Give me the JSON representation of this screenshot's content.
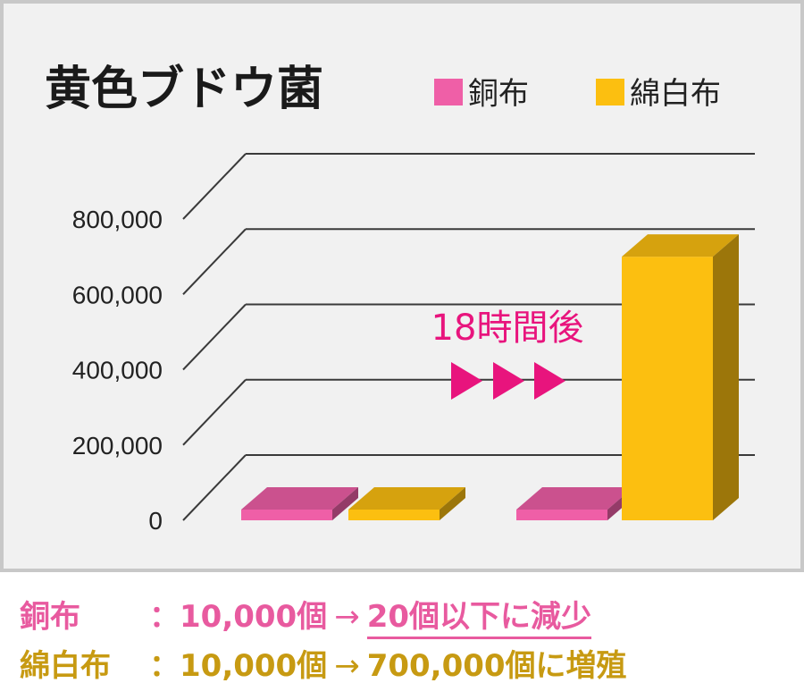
{
  "chart_data": {
    "type": "bar",
    "title": "黄色ブドウ菌",
    "legend_position": "top-right",
    "categories": [
      "",
      ""
    ],
    "series": [
      {
        "name": "銅布",
        "color": "#ef5fa7",
        "values": [
          10000,
          0
        ]
      },
      {
        "name": "綿白布",
        "color": "#fcbf10",
        "values": [
          10000,
          700000
        ]
      }
    ],
    "ylim": [
      0,
      800000
    ],
    "yticks": [
      "0",
      "200,000",
      "400,000",
      "600,000",
      "800,000"
    ],
    "annotation": "18時間後",
    "annotation_color": "#e8147d",
    "grid": true
  },
  "footer": {
    "line1": {
      "label": "銅布　",
      "colon": "：",
      "count": "10,000個",
      "arrow": "→",
      "result": "20個以下に減少"
    },
    "line2": {
      "label": "綿白布",
      "colon": "：",
      "count": "10,000個",
      "arrow": "→",
      "result": "700,000個に増殖"
    }
  }
}
